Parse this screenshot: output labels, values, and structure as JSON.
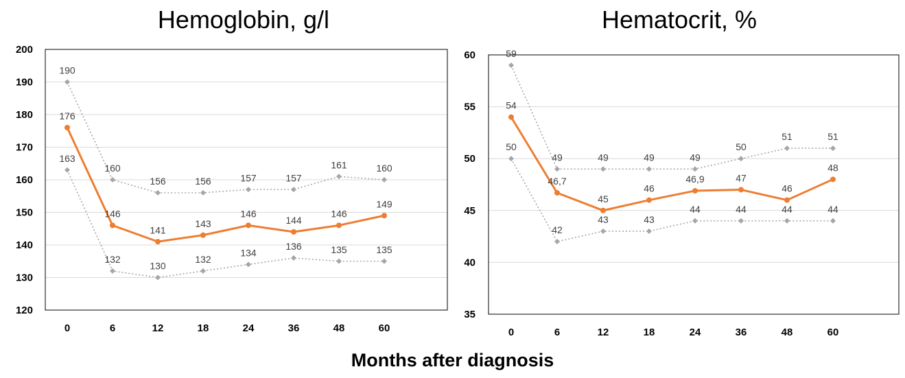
{
  "xlabel": "Months after diagnosis",
  "colors": {
    "main": "#ED7D31",
    "bound": "#A6A6A6",
    "grid": "#D9D9D9",
    "label": "#404040"
  },
  "chart_data": [
    {
      "type": "line",
      "title": "Hemoglobin, g/l",
      "categories": [
        "0",
        "6",
        "12",
        "18",
        "24",
        "36",
        "48",
        "60"
      ],
      "ylim": [
        120,
        200
      ],
      "yticks": [
        "120",
        "130",
        "140",
        "150",
        "160",
        "170",
        "180",
        "190",
        "200"
      ],
      "grid": true,
      "series": [
        {
          "role": "upper",
          "values": [
            190,
            160,
            156,
            156,
            157,
            157,
            161,
            160
          ],
          "labels": [
            "190",
            "160",
            "156",
            "156",
            "157",
            "157",
            "161",
            "160"
          ]
        },
        {
          "role": "median",
          "values": [
            176,
            146,
            141,
            143,
            146,
            144,
            146,
            149
          ],
          "labels": [
            "176",
            "146",
            "141",
            "143",
            "146",
            "144",
            "146",
            "149"
          ]
        },
        {
          "role": "lower",
          "values": [
            163,
            132,
            130,
            132,
            134,
            136,
            135,
            135
          ],
          "labels": [
            "163",
            "132",
            "130",
            "132",
            "134",
            "136",
            "135",
            "135"
          ]
        }
      ]
    },
    {
      "type": "line",
      "title": "Hematocrit, %",
      "categories": [
        "0",
        "6",
        "12",
        "18",
        "24",
        "36",
        "48",
        "60"
      ],
      "ylim": [
        35,
        60
      ],
      "yticks": [
        "35",
        "40",
        "45",
        "50",
        "55",
        "60"
      ],
      "grid": true,
      "series": [
        {
          "role": "upper",
          "values": [
            59,
            49,
            49,
            49,
            49,
            50,
            51,
            51
          ],
          "labels": [
            "59",
            "49",
            "49",
            "49",
            "49",
            "50",
            "51",
            "51"
          ]
        },
        {
          "role": "median",
          "values": [
            54,
            46.7,
            45,
            46,
            46.9,
            47,
            46,
            48
          ],
          "labels": [
            "54",
            "46,7",
            "45",
            "46",
            "46,9",
            "47",
            "46",
            "48"
          ]
        },
        {
          "role": "lower",
          "values": [
            50,
            42,
            43,
            43,
            44,
            44,
            44,
            44
          ],
          "labels": [
            "50",
            "42",
            "43",
            "43",
            "44",
            "44",
            "44",
            "44"
          ]
        }
      ]
    }
  ]
}
